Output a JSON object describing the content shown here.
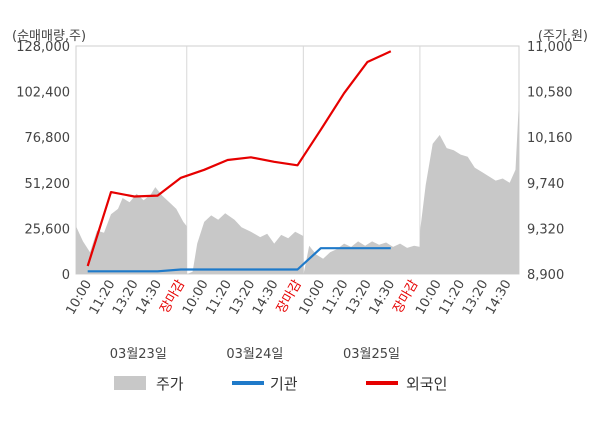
{
  "chart_data": {
    "type": "line",
    "left_unit": "(순매매량,주)",
    "right_unit": "(주가,원)",
    "left_axis": {
      "ticks": [
        "128,000",
        "102,400",
        "76,800",
        "51,200",
        "25,600",
        "0"
      ],
      "values": [
        128000,
        102400,
        76800,
        51200,
        25600,
        0
      ],
      "ylim": [
        0,
        128000
      ]
    },
    "right_axis": {
      "ticks": [
        "11,000",
        "10,580",
        "10,160",
        "9,740",
        "9,320",
        "8,900"
      ],
      "values": [
        11000,
        10580,
        10160,
        9740,
        9320,
        8900
      ],
      "ylim": [
        8900,
        11000
      ]
    },
    "x_ticks": [
      {
        "label": "10:00",
        "pos": 0.5,
        "close": false
      },
      {
        "label": "11:20",
        "pos": 1.5,
        "close": false
      },
      {
        "label": "13:20",
        "pos": 2.5,
        "close": false
      },
      {
        "label": "14:30",
        "pos": 3.5,
        "close": false
      },
      {
        "label": "장마감",
        "pos": 4.5,
        "close": true
      },
      {
        "label": "10:00",
        "pos": 5.5,
        "close": false
      },
      {
        "label": "11:20",
        "pos": 6.5,
        "close": false
      },
      {
        "label": "13:20",
        "pos": 7.5,
        "close": false
      },
      {
        "label": "14:30",
        "pos": 8.5,
        "close": false
      },
      {
        "label": "장마감",
        "pos": 9.5,
        "close": true
      },
      {
        "label": "10:00",
        "pos": 10.5,
        "close": false
      },
      {
        "label": "11:20",
        "pos": 11.5,
        "close": false
      },
      {
        "label": "13:20",
        "pos": 12.5,
        "close": false
      },
      {
        "label": "14:30",
        "pos": 13.5,
        "close": false
      },
      {
        "label": "장마감",
        "pos": 14.5,
        "close": true
      },
      {
        "label": "10:00",
        "pos": 15.5,
        "close": false
      },
      {
        "label": "11:20",
        "pos": 16.5,
        "close": false
      },
      {
        "label": "13:20",
        "pos": 17.5,
        "close": false
      },
      {
        "label": "14:30",
        "pos": 18.5,
        "close": false
      }
    ],
    "x_range": [
      0,
      19
    ],
    "dates": [
      {
        "label": "03월23일",
        "pos": 2.5
      },
      {
        "label": "03월24일",
        "pos": 7.5
      },
      {
        "label": "03월25일",
        "pos": 12.5
      }
    ],
    "day_separators": [
      4.75,
      9.75,
      14.75
    ],
    "series": [
      {
        "name": "주가",
        "kind": "area",
        "axis": "right",
        "color": "#c8c8c8",
        "points": [
          [
            0.0,
            9340
          ],
          [
            0.3,
            9200
          ],
          [
            0.6,
            9100
          ],
          [
            0.9,
            9300
          ],
          [
            1.2,
            9280
          ],
          [
            1.5,
            9450
          ],
          [
            1.8,
            9500
          ],
          [
            2.0,
            9600
          ],
          [
            2.3,
            9560
          ],
          [
            2.6,
            9640
          ],
          [
            2.9,
            9580
          ],
          [
            3.2,
            9630
          ],
          [
            3.4,
            9700
          ],
          [
            3.7,
            9620
          ],
          [
            4.0,
            9560
          ],
          [
            4.3,
            9500
          ],
          [
            4.6,
            9380
          ],
          [
            4.75,
            9340
          ],
          [
            4.76,
            8900
          ],
          [
            5.0,
            8920
          ],
          [
            5.2,
            9180
          ],
          [
            5.5,
            9380
          ],
          [
            5.8,
            9440
          ],
          [
            6.1,
            9400
          ],
          [
            6.4,
            9460
          ],
          [
            6.8,
            9400
          ],
          [
            7.1,
            9330
          ],
          [
            7.5,
            9290
          ],
          [
            7.9,
            9240
          ],
          [
            8.2,
            9270
          ],
          [
            8.5,
            9180
          ],
          [
            8.8,
            9260
          ],
          [
            9.1,
            9230
          ],
          [
            9.4,
            9290
          ],
          [
            9.75,
            9250
          ],
          [
            9.76,
            8900
          ],
          [
            10.0,
            9160
          ],
          [
            10.3,
            9080
          ],
          [
            10.6,
            9040
          ],
          [
            10.9,
            9100
          ],
          [
            11.2,
            9130
          ],
          [
            11.5,
            9180
          ],
          [
            11.8,
            9150
          ],
          [
            12.1,
            9200
          ],
          [
            12.4,
            9160
          ],
          [
            12.7,
            9200
          ],
          [
            13.0,
            9170
          ],
          [
            13.3,
            9190
          ],
          [
            13.6,
            9150
          ],
          [
            13.9,
            9180
          ],
          [
            14.2,
            9140
          ],
          [
            14.5,
            9160
          ],
          [
            14.75,
            9150
          ],
          [
            14.76,
            9300
          ],
          [
            15.0,
            9720
          ],
          [
            15.3,
            10100
          ],
          [
            15.6,
            10180
          ],
          [
            15.9,
            10060
          ],
          [
            16.2,
            10040
          ],
          [
            16.5,
            10000
          ],
          [
            16.8,
            9980
          ],
          [
            17.1,
            9880
          ],
          [
            17.4,
            9840
          ],
          [
            17.7,
            9800
          ],
          [
            18.0,
            9760
          ],
          [
            18.3,
            9780
          ],
          [
            18.6,
            9740
          ],
          [
            18.85,
            9860
          ],
          [
            19.0,
            10500
          ],
          [
            19.0,
            8900
          ]
        ]
      },
      {
        "name": "기관",
        "kind": "line",
        "axis": "left",
        "color": "#1f7ac9",
        "points": [
          [
            0.5,
            1500
          ],
          [
            1.5,
            1500
          ],
          [
            2.5,
            1500
          ],
          [
            3.5,
            1500
          ],
          [
            4.5,
            2500
          ],
          [
            5.5,
            2500
          ],
          [
            6.5,
            2500
          ],
          [
            7.5,
            2500
          ],
          [
            8.5,
            2500
          ],
          [
            9.5,
            2500
          ],
          [
            10.5,
            14500
          ],
          [
            11.5,
            14500
          ],
          [
            12.5,
            14500
          ],
          [
            13.5,
            14500
          ]
        ]
      },
      {
        "name": "외국인",
        "kind": "line",
        "axis": "left",
        "color": "#e60000",
        "points": [
          [
            0.5,
            4500
          ],
          [
            1.5,
            46000
          ],
          [
            2.5,
            43500
          ],
          [
            3.5,
            44000
          ],
          [
            4.5,
            54000
          ],
          [
            5.5,
            58500
          ],
          [
            6.5,
            64000
          ],
          [
            7.5,
            65500
          ],
          [
            8.5,
            63000
          ],
          [
            9.5,
            61000
          ],
          [
            10.5,
            81000
          ],
          [
            11.5,
            101500
          ],
          [
            12.5,
            119000
          ],
          [
            13.5,
            125000
          ]
        ]
      }
    ],
    "legend": {
      "placement": "bottom"
    }
  }
}
